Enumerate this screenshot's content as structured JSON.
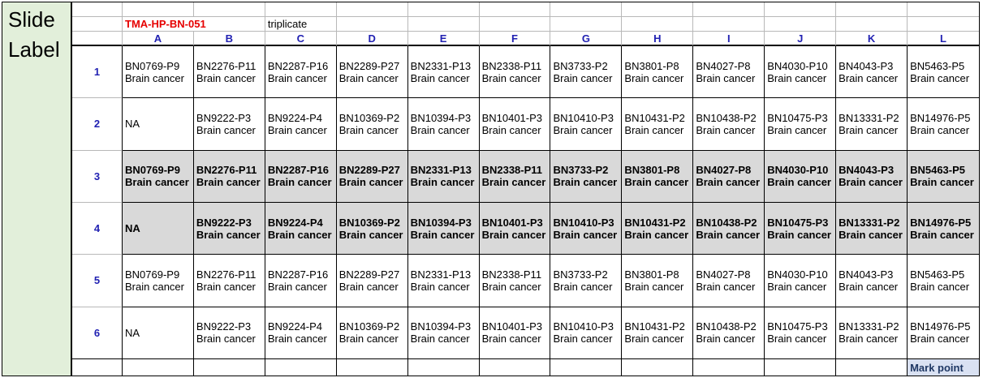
{
  "slide_panel": {
    "label": "Slide Label"
  },
  "header": {
    "plate_id": "TMA-HP-BN-051",
    "note": "triplicate",
    "columns": [
      "A",
      "B",
      "C",
      "D",
      "E",
      "F",
      "G",
      "H",
      "I",
      "J",
      "K",
      "L"
    ]
  },
  "grid": {
    "rows": [
      {
        "num": "1",
        "highlight": false,
        "cells": [
          {
            "id": "BN0769-P9",
            "type": "Brain cancer"
          },
          {
            "id": "BN2276-P11",
            "type": "Brain cancer"
          },
          {
            "id": "BN2287-P16",
            "type": "Brain cancer"
          },
          {
            "id": "BN2289-P27",
            "type": "Brain cancer"
          },
          {
            "id": "BN2331-P13",
            "type": "Brain cancer"
          },
          {
            "id": "BN2338-P11",
            "type": "Brain cancer"
          },
          {
            "id": "BN3733-P2",
            "type": "Brain cancer"
          },
          {
            "id": "BN3801-P8",
            "type": "Brain cancer"
          },
          {
            "id": "BN4027-P8",
            "type": "Brain cancer"
          },
          {
            "id": "BN4030-P10",
            "type": "Brain cancer"
          },
          {
            "id": "BN4043-P3",
            "type": "Brain cancer"
          },
          {
            "id": "BN5463-P5",
            "type": "Brain cancer"
          }
        ]
      },
      {
        "num": "2",
        "highlight": false,
        "cells": [
          {
            "id": "NA",
            "type": ""
          },
          {
            "id": "BN9222-P3",
            "type": "Brain cancer"
          },
          {
            "id": "BN9224-P4",
            "type": "Brain cancer"
          },
          {
            "id": "BN10369-P2",
            "type": "Brain cancer"
          },
          {
            "id": "BN10394-P3",
            "type": "Brain cancer"
          },
          {
            "id": "BN10401-P3",
            "type": "Brain cancer"
          },
          {
            "id": "BN10410-P3",
            "type": "Brain cancer"
          },
          {
            "id": "BN10431-P2",
            "type": "Brain cancer"
          },
          {
            "id": "BN10438-P2",
            "type": "Brain cancer"
          },
          {
            "id": "BN10475-P3",
            "type": "Brain cancer"
          },
          {
            "id": "BN13331-P2",
            "type": "Brain cancer"
          },
          {
            "id": "BN14976-P5",
            "type": "Brain cancer"
          }
        ]
      },
      {
        "num": "3",
        "highlight": true,
        "cells": [
          {
            "id": "BN0769-P9",
            "type": "Brain cancer"
          },
          {
            "id": "BN2276-P11",
            "type": "Brain cancer"
          },
          {
            "id": "BN2287-P16",
            "type": "Brain cancer"
          },
          {
            "id": "BN2289-P27",
            "type": "Brain cancer"
          },
          {
            "id": "BN2331-P13",
            "type": "Brain cancer"
          },
          {
            "id": "BN2338-P11",
            "type": "Brain cancer"
          },
          {
            "id": "BN3733-P2",
            "type": "Brain cancer"
          },
          {
            "id": "BN3801-P8",
            "type": "Brain cancer"
          },
          {
            "id": "BN4027-P8",
            "type": "Brain cancer"
          },
          {
            "id": "BN4030-P10",
            "type": "Brain cancer"
          },
          {
            "id": "BN4043-P3",
            "type": "Brain cancer"
          },
          {
            "id": "BN5463-P5",
            "type": "Brain cancer"
          }
        ]
      },
      {
        "num": "4",
        "highlight": true,
        "cells": [
          {
            "id": "NA",
            "type": ""
          },
          {
            "id": "BN9222-P3",
            "type": "Brain cancer"
          },
          {
            "id": "BN9224-P4",
            "type": "Brain cancer"
          },
          {
            "id": "BN10369-P2",
            "type": "Brain cancer"
          },
          {
            "id": "BN10394-P3",
            "type": "Brain cancer"
          },
          {
            "id": "BN10401-P3",
            "type": "Brain cancer"
          },
          {
            "id": "BN10410-P3",
            "type": "Brain cancer"
          },
          {
            "id": "BN10431-P2",
            "type": "Brain cancer"
          },
          {
            "id": "BN10438-P2",
            "type": "Brain cancer"
          },
          {
            "id": "BN10475-P3",
            "type": "Brain cancer"
          },
          {
            "id": "BN13331-P2",
            "type": "Brain cancer"
          },
          {
            "id": "BN14976-P5",
            "type": "Brain cancer"
          }
        ]
      },
      {
        "num": "5",
        "highlight": false,
        "cells": [
          {
            "id": "BN0769-P9",
            "type": "Brain cancer"
          },
          {
            "id": "BN2276-P11",
            "type": "Brain cancer"
          },
          {
            "id": "BN2287-P16",
            "type": "Brain cancer"
          },
          {
            "id": "BN2289-P27",
            "type": "Brain cancer"
          },
          {
            "id": "BN2331-P13",
            "type": "Brain cancer"
          },
          {
            "id": "BN2338-P11",
            "type": "Brain cancer"
          },
          {
            "id": "BN3733-P2",
            "type": "Brain cancer"
          },
          {
            "id": "BN3801-P8",
            "type": "Brain cancer"
          },
          {
            "id": "BN4027-P8",
            "type": "Brain cancer"
          },
          {
            "id": "BN4030-P10",
            "type": "Brain cancer"
          },
          {
            "id": "BN4043-P3",
            "type": "Brain cancer"
          },
          {
            "id": "BN5463-P5",
            "type": "Brain cancer"
          }
        ]
      },
      {
        "num": "6",
        "highlight": false,
        "cells": [
          {
            "id": "NA",
            "type": ""
          },
          {
            "id": "BN9222-P3",
            "type": "Brain cancer"
          },
          {
            "id": "BN9224-P4",
            "type": "Brain cancer"
          },
          {
            "id": "BN10369-P2",
            "type": "Brain cancer"
          },
          {
            "id": "BN10394-P3",
            "type": "Brain cancer"
          },
          {
            "id": "BN10401-P3",
            "type": "Brain cancer"
          },
          {
            "id": "BN10410-P3",
            "type": "Brain cancer"
          },
          {
            "id": "BN10431-P2",
            "type": "Brain cancer"
          },
          {
            "id": "BN10438-P2",
            "type": "Brain cancer"
          },
          {
            "id": "BN10475-P3",
            "type": "Brain cancer"
          },
          {
            "id": "BN13331-P2",
            "type": "Brain cancer"
          },
          {
            "id": "BN14976-P5",
            "type": "Brain cancer"
          }
        ]
      }
    ]
  },
  "footer": {
    "mark_point": "Mark point"
  },
  "colors": {
    "panel_green": "#e2efda",
    "highlight_gray": "#d9d9d9",
    "mark_point_bg": "#d9e1f2",
    "mark_point_text": "#1f3864",
    "plate_id_red": "#e60000",
    "index_blue": "#2121b2",
    "grid_line_gray": "#b8b8b8"
  }
}
